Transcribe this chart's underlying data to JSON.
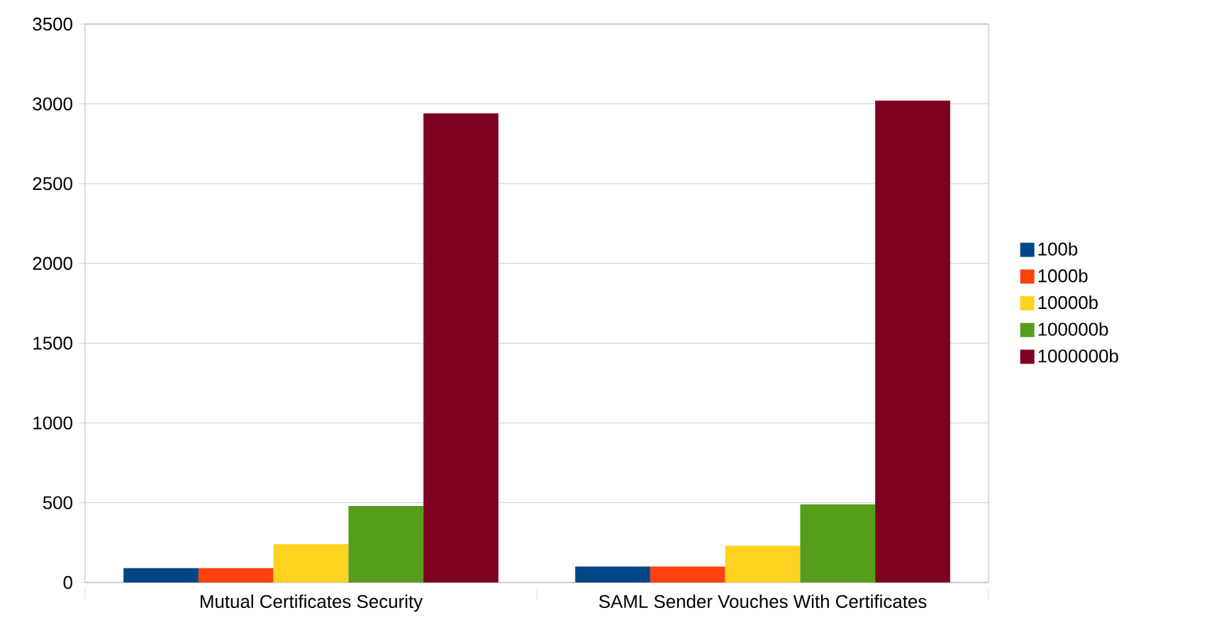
{
  "chart_data": {
    "type": "bar",
    "categories": [
      "Mutual Certificates Security",
      "SAML Sender Vouches With Certificates"
    ],
    "series": [
      {
        "name": "100b",
        "color": "#004586",
        "values": [
          90,
          100
        ]
      },
      {
        "name": "1000b",
        "color": "#ff420e",
        "values": [
          90,
          100
        ]
      },
      {
        "name": "10000b",
        "color": "#ffd320",
        "values": [
          240,
          230
        ]
      },
      {
        "name": "100000b",
        "color": "#579d1c",
        "values": [
          480,
          490
        ]
      },
      {
        "name": "1000000b",
        "color": "#7e0021",
        "values": [
          2940,
          3020
        ]
      }
    ],
    "ylim": [
      0,
      3500
    ],
    "yticks": [
      0,
      500,
      1000,
      1500,
      2000,
      2500,
      3000,
      3500
    ],
    "grid": "y",
    "legend": "right"
  }
}
